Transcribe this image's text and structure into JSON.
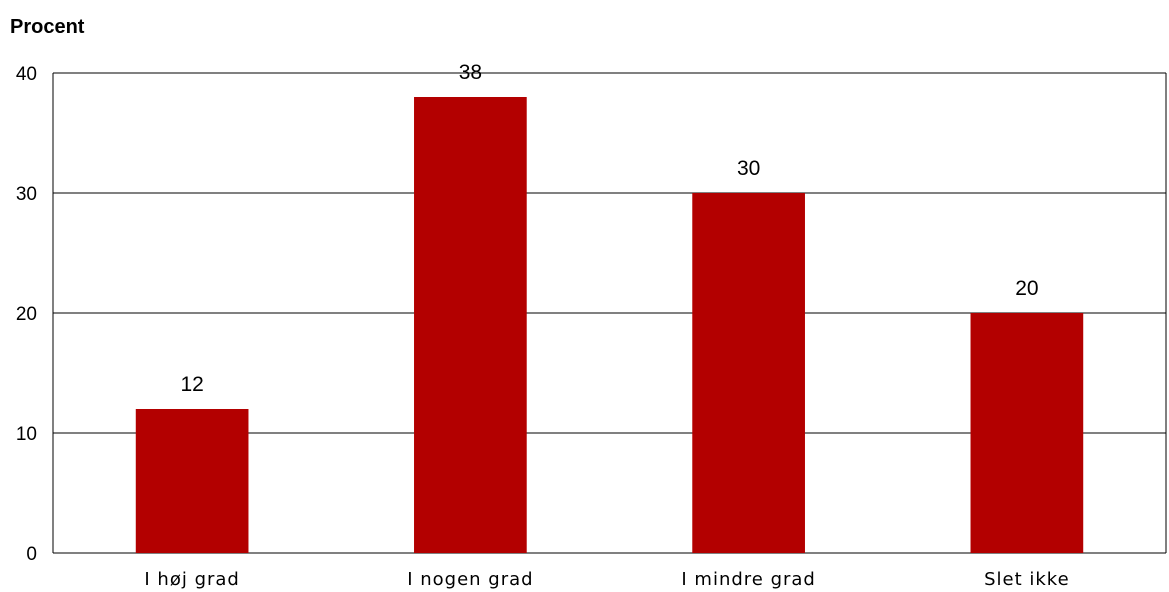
{
  "chart_data": {
    "type": "bar",
    "ylabel": "Procent",
    "xlabel": "",
    "categories": [
      "I høj grad",
      "I nogen grad",
      "I mindre grad",
      "Slet ikke"
    ],
    "values": [
      12,
      38,
      30,
      20
    ],
    "data_labels": [
      "12",
      "38",
      "30",
      "20"
    ],
    "ylim": [
      0,
      40
    ],
    "yticks": [
      0,
      10,
      20,
      30,
      40
    ],
    "ytick_labels": [
      "0",
      "10",
      "20",
      "30",
      "40"
    ],
    "grid": true,
    "bar_color": "#b30000"
  }
}
